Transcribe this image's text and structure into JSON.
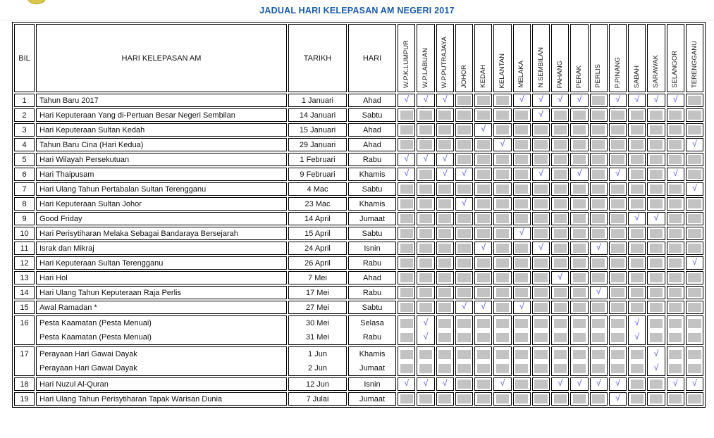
{
  "title": "JADUAL HARI KELEPASAN AM NEGERI 2017",
  "colors": {
    "title": "#1a5cab",
    "check": "#5a5ae8",
    "na_fill": "#c3c3c3",
    "border": "#000000",
    "logo_yellow": "#d9c74b"
  },
  "icons": {
    "check_glyph": "√"
  },
  "table": {
    "headers": {
      "bil": "BIL",
      "name": "HARI KELEPASAN AM",
      "date": "TARIKH",
      "day": "HARI"
    },
    "states": [
      "W.P.K.LUMPUR",
      "W.P.LABUAN",
      "W.P.PUTRAJAYA",
      "JOHOR",
      "KEDAH",
      "KELANTAN",
      "MELAKA",
      "N.SEMBILAN",
      "PAHANG",
      "PERAK",
      "PERLIS",
      "P.PINANG",
      "SABAH",
      "SARAWAK",
      "SELANGOR",
      "TERENGGANU"
    ],
    "rows": [
      {
        "bil": "1",
        "lines": [
          {
            "name": "Tahun Baru 2017",
            "date": "1 Januari",
            "day": "Ahad",
            "checks": [
              1,
              1,
              1,
              0,
              0,
              0,
              1,
              1,
              1,
              1,
              0,
              1,
              1,
              1,
              1,
              0
            ]
          }
        ]
      },
      {
        "bil": "2",
        "lines": [
          {
            "name": "Hari Keputeraan Yang di-Pertuan Besar Negeri Sembilan",
            "date": "14 Januari",
            "day": "Sabtu",
            "checks": [
              0,
              0,
              0,
              0,
              0,
              0,
              0,
              1,
              0,
              0,
              0,
              0,
              0,
              0,
              0,
              0
            ]
          }
        ]
      },
      {
        "bil": "3",
        "lines": [
          {
            "name": "Hari Keputeraan Sultan Kedah",
            "date": "15 Januari",
            "day": "Ahad",
            "checks": [
              0,
              0,
              0,
              0,
              1,
              0,
              0,
              0,
              0,
              0,
              0,
              0,
              0,
              0,
              0,
              0
            ]
          }
        ]
      },
      {
        "bil": "4",
        "lines": [
          {
            "name": "Tahun Baru Cina (Hari Kedua)",
            "date": "29 Januari",
            "day": "Ahad",
            "checks": [
              0,
              0,
              0,
              0,
              0,
              1,
              0,
              0,
              0,
              0,
              0,
              0,
              0,
              0,
              0,
              1
            ]
          }
        ]
      },
      {
        "bil": "5",
        "lines": [
          {
            "name": "Hari Wilayah Persekutuan",
            "date": "1 Februari",
            "day": "Rabu",
            "checks": [
              1,
              1,
              1,
              0,
              0,
              0,
              0,
              0,
              0,
              0,
              0,
              0,
              0,
              0,
              0,
              0
            ]
          }
        ]
      },
      {
        "bil": "6",
        "lines": [
          {
            "name": "Hari Thaipusam",
            "date": "9 Februari",
            "day": "Khamis",
            "checks": [
              1,
              0,
              1,
              1,
              0,
              0,
              0,
              1,
              0,
              1,
              0,
              1,
              0,
              0,
              1,
              0
            ]
          }
        ]
      },
      {
        "bil": "7",
        "lines": [
          {
            "name": "Hari Ulang Tahun Pertabalan Sultan Terengganu",
            "date": "4 Mac",
            "day": "Sabtu",
            "checks": [
              0,
              0,
              0,
              0,
              0,
              0,
              0,
              0,
              0,
              0,
              0,
              0,
              0,
              0,
              0,
              1
            ]
          }
        ]
      },
      {
        "bil": "8",
        "lines": [
          {
            "name": "Hari Keputeraan Sultan Johor",
            "date": "23 Mac",
            "day": "Khamis",
            "checks": [
              0,
              0,
              0,
              1,
              0,
              0,
              0,
              0,
              0,
              0,
              0,
              0,
              0,
              0,
              0,
              0
            ]
          }
        ]
      },
      {
        "bil": "9",
        "lines": [
          {
            "name": "Good Friday",
            "date": "14 April",
            "day": "Jumaat",
            "checks": [
              0,
              0,
              0,
              0,
              0,
              0,
              0,
              0,
              0,
              0,
              0,
              0,
              1,
              1,
              0,
              0
            ]
          }
        ]
      },
      {
        "bil": "10",
        "lines": [
          {
            "name": "Hari Perisytiharan Melaka Sebagai Bandaraya Bersejarah",
            "date": "15 April",
            "day": "Sabtu",
            "checks": [
              0,
              0,
              0,
              0,
              0,
              0,
              1,
              0,
              0,
              0,
              0,
              0,
              0,
              0,
              0,
              0
            ]
          }
        ]
      },
      {
        "bil": "11",
        "lines": [
          {
            "name": "Israk dan Mikraj",
            "date": "24 April",
            "day": "Isnin",
            "checks": [
              0,
              0,
              0,
              0,
              1,
              0,
              0,
              1,
              0,
              0,
              1,
              0,
              0,
              0,
              0,
              0
            ]
          }
        ]
      },
      {
        "bil": "12",
        "lines": [
          {
            "name": "Hari Keputeraan Sultan Terengganu",
            "date": "26 April",
            "day": "Rabu",
            "checks": [
              0,
              0,
              0,
              0,
              0,
              0,
              0,
              0,
              0,
              0,
              0,
              0,
              0,
              0,
              0,
              1
            ]
          }
        ]
      },
      {
        "bil": "13",
        "lines": [
          {
            "name": "Hari Hol",
            "date": "7 Mei",
            "day": "Ahad",
            "checks": [
              0,
              0,
              0,
              0,
              0,
              0,
              0,
              0,
              1,
              0,
              0,
              0,
              0,
              0,
              0,
              0
            ]
          }
        ]
      },
      {
        "bil": "14",
        "lines": [
          {
            "name": "Hari Ulang Tahun Keputeraan Raja Perlis",
            "date": "17 Mei",
            "day": "Rabu",
            "checks": [
              0,
              0,
              0,
              0,
              0,
              0,
              0,
              0,
              0,
              0,
              1,
              0,
              0,
              0,
              0,
              0
            ]
          }
        ]
      },
      {
        "bil": "15",
        "lines": [
          {
            "name": "Awal Ramadan *",
            "date": "27 Mei",
            "day": "Sabtu",
            "checks": [
              0,
              0,
              0,
              1,
              1,
              0,
              1,
              0,
              0,
              0,
              0,
              0,
              0,
              0,
              0,
              0
            ]
          }
        ]
      },
      {
        "bil": "16",
        "lines": [
          {
            "name": "Pesta Kaamatan (Pesta Menuai)",
            "date": "30 Mei",
            "day": "Selasa",
            "checks": [
              0,
              1,
              0,
              0,
              0,
              0,
              0,
              0,
              0,
              0,
              0,
              0,
              1,
              0,
              0,
              0
            ]
          },
          {
            "name": "Pesta Kaamatan (Pesta Menuai)",
            "date": "31 Mei",
            "day": "Rabu",
            "checks": [
              0,
              1,
              0,
              0,
              0,
              0,
              0,
              0,
              0,
              0,
              0,
              0,
              1,
              0,
              0,
              0
            ]
          }
        ]
      },
      {
        "bil": "17",
        "lines": [
          {
            "name": "Perayaan Hari Gawai Dayak",
            "date": "1 Jun",
            "day": "Khamis",
            "checks": [
              0,
              0,
              0,
              0,
              0,
              0,
              0,
              0,
              0,
              0,
              0,
              0,
              0,
              1,
              0,
              0
            ]
          },
          {
            "name": "Perayaan Hari Gawai Dayak",
            "date": "2 Jun",
            "day": "Jumaat",
            "checks": [
              0,
              0,
              0,
              0,
              0,
              0,
              0,
              0,
              0,
              0,
              0,
              0,
              0,
              1,
              0,
              0
            ]
          }
        ]
      },
      {
        "bil": "18",
        "lines": [
          {
            "name": "Hari Nuzul Al-Quran",
            "date": "12 Jun",
            "day": "Isnin",
            "checks": [
              1,
              1,
              1,
              0,
              0,
              1,
              0,
              0,
              1,
              1,
              1,
              1,
              0,
              0,
              1,
              1
            ]
          }
        ]
      },
      {
        "bil": "19",
        "lines": [
          {
            "name": "Hari Ulang Tahun Perisytiharan Tapak Warisan Dunia",
            "date": "7 Julai",
            "day": "Jumaat",
            "checks": [
              0,
              0,
              0,
              0,
              0,
              0,
              0,
              0,
              0,
              0,
              0,
              1,
              0,
              0,
              0,
              0
            ]
          }
        ]
      }
    ]
  }
}
